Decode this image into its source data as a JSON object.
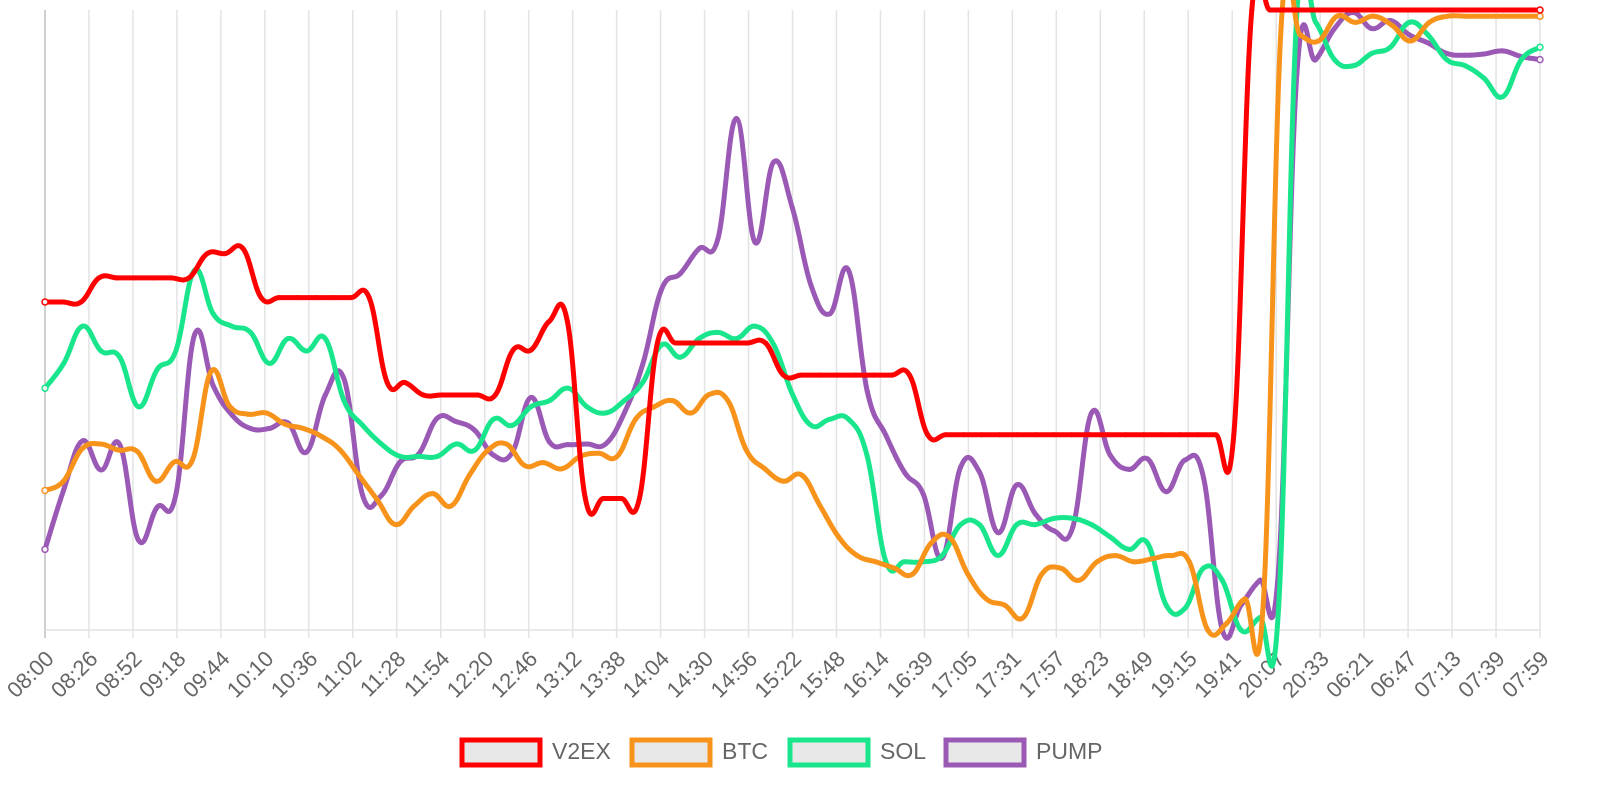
{
  "chart_data": {
    "type": "line",
    "title": "",
    "xlabel": "",
    "ylabel": "",
    "ylim": [
      0,
      100
    ],
    "grid": {
      "vertical": true,
      "horizontal": false
    },
    "legend_position": "bottom-center",
    "x_ticks": [
      "08:00",
      "08:26",
      "08:52",
      "09:18",
      "09:44",
      "10:10",
      "10:36",
      "11:02",
      "11:28",
      "11:54",
      "12:20",
      "12:46",
      "13:12",
      "13:38",
      "14:04",
      "14:30",
      "14:56",
      "15:22",
      "15:48",
      "16:14",
      "16:39",
      "17:05",
      "17:31",
      "17:57",
      "18:23",
      "18:49",
      "19:15",
      "19:41",
      "20:07",
      "20:33",
      "06:21",
      "06:47",
      "07:13",
      "07:39",
      "07:59"
    ],
    "series": [
      {
        "name": "V2EX",
        "color": "#ff0000",
        "values": [
          52.9,
          52.9,
          52.9,
          56.8,
          56.8,
          56.8,
          56.8,
          56.8,
          56.8,
          60.7,
          60.7,
          61.5,
          53.6,
          53.6,
          53.6,
          53.6,
          53.6,
          53.6,
          53.6,
          39.9,
          39.9,
          37.9,
          37.9,
          37.9,
          37.9,
          37.9,
          45.2,
          45.2,
          49.8,
          49.8,
          21.2,
          21.2,
          21.2,
          21.2,
          46.3,
          46.3,
          46.3,
          46.3,
          46.3,
          46.3,
          46.3,
          41.1,
          41.1,
          41.1,
          41.1,
          41.1,
          41.1,
          41.1,
          41.1,
          31.5,
          31.5,
          31.5,
          31.5,
          31.5,
          31.5,
          31.5,
          31.5,
          31.5,
          31.5,
          31.5,
          31.5,
          31.5,
          31.5,
          31.5,
          31.5,
          31.5,
          31.5,
          100,
          100,
          100,
          100,
          100,
          100,
          100,
          100,
          100,
          100,
          100,
          100,
          100,
          100,
          100,
          100,
          100
        ]
      },
      {
        "name": "BTC",
        "color": "#f7931a",
        "values": [
          22.5,
          24,
          29.2,
          30,
          29,
          28.8,
          24,
          27.1,
          27.5,
          41.7,
          36.1,
          34.8,
          35,
          33.2,
          32.5,
          31.2,
          29,
          25,
          21,
          17,
          20,
          22,
          20,
          25,
          29,
          30,
          26.5,
          27,
          26,
          28,
          28.5,
          28,
          34,
          36,
          37,
          35,
          38,
          37,
          29,
          26,
          24,
          25,
          20,
          15,
          12,
          11,
          10,
          9,
          14,
          15,
          9,
          5,
          4,
          2,
          9,
          10,
          8,
          11,
          12,
          11,
          11.5,
          12,
          11,
          0,
          1,
          5,
          4,
          98.5,
          96,
          95,
          99,
          98,
          99,
          97.5,
          95,
          98,
          99,
          99,
          99,
          99,
          99,
          99
        ]
      },
      {
        "name": "SOL",
        "color": "#19e68c",
        "values": [
          39,
          43,
          49,
          45,
          44,
          36,
          42,
          45,
          58,
          51,
          49,
          48,
          43,
          47,
          45,
          47,
          37,
          33,
          30,
          28,
          28,
          28,
          30,
          29,
          34,
          33,
          36,
          37,
          39,
          36,
          35,
          37,
          40,
          46,
          44,
          47,
          48,
          47,
          49,
          46,
          38,
          33,
          34,
          34,
          28,
          11,
          11,
          11,
          12,
          17,
          17,
          12,
          17,
          17,
          18,
          18,
          17,
          15,
          13,
          14,
          4,
          3.5,
          10,
          8,
          0,
          2,
          3,
          100,
          98,
          92,
          91,
          93,
          94,
          98,
          96,
          92,
          91,
          89,
          86,
          92,
          94
        ]
      },
      {
        "name": "PUMP",
        "color": "#9b59b6",
        "values": [
          13,
          22.6,
          30.5,
          25.8,
          29.9,
          14.5,
          19.8,
          21.8,
          47.6,
          39.4,
          34.7,
          32.5,
          32.5,
          33.4,
          28.7,
          37.9,
          40.5,
          21.7,
          21.7,
          27.1,
          28.4,
          34.2,
          33.6,
          32.2,
          28.2,
          28.6,
          37.5,
          30.3,
          29.9,
          30,
          30,
          35,
          43,
          55,
          57.5,
          61.5,
          63,
          82.5,
          62.5,
          75.5,
          68,
          55.5,
          51,
          58,
          38.5,
          31.4,
          25.4,
          21.9,
          11.6,
          26.3,
          25.5,
          15.7,
          23.4,
          18.7,
          16,
          16.6,
          35,
          28.2,
          25.9,
          27.6,
          22.3,
          27.4,
          24.5,
          0,
          4,
          8,
          9.4,
          90.1,
          92,
          97,
          99.6,
          97,
          98.3,
          96,
          94.7,
          93,
          92.7,
          92.9,
          93.4,
          92.5,
          92
        ]
      }
    ]
  }
}
